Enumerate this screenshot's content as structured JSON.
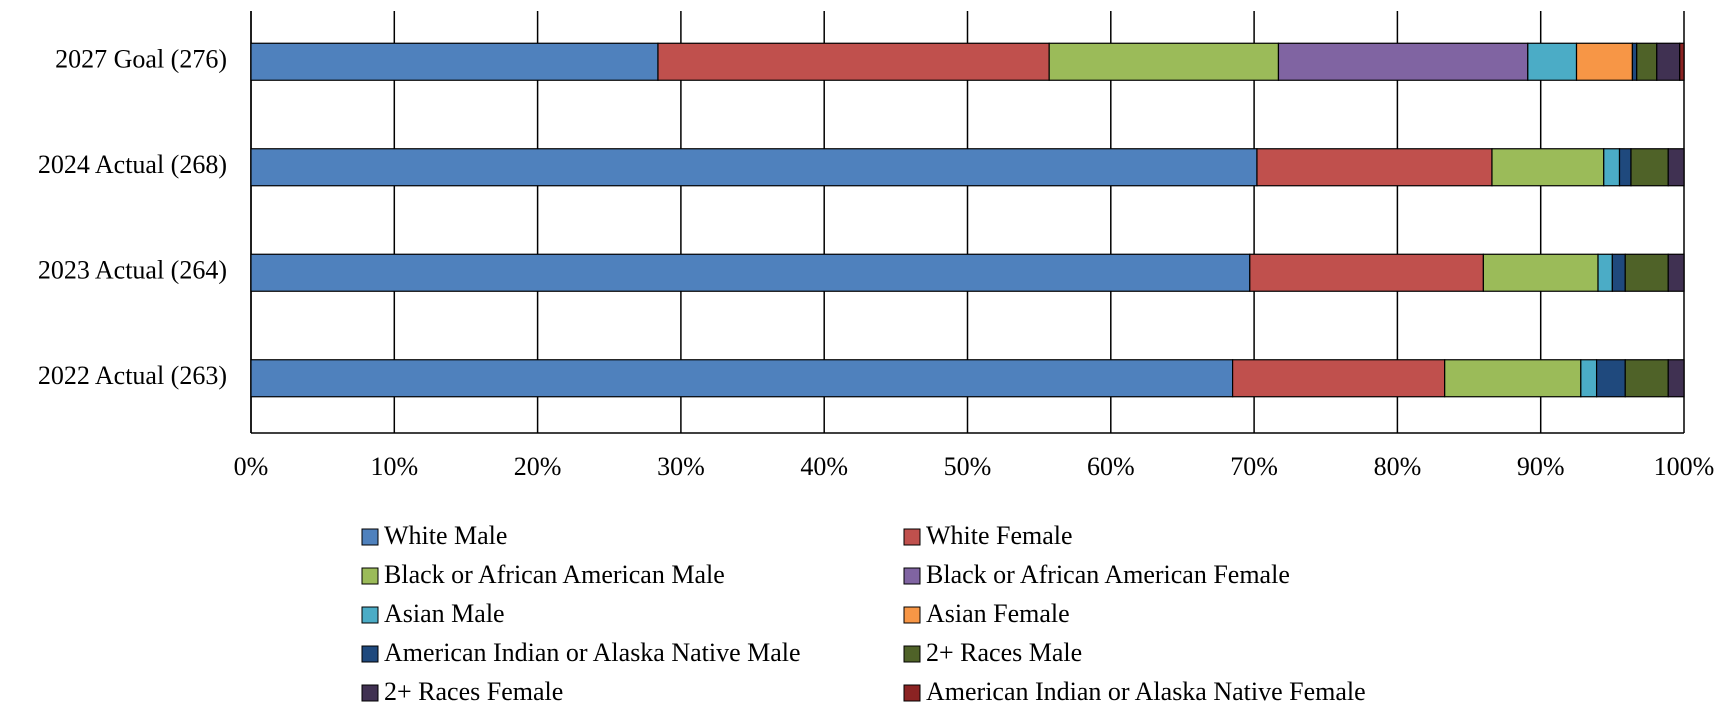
{
  "chart_data": {
    "type": "stacked_bar_horizontal",
    "categories": [
      "2027 Goal (276)",
      "2024 Actual (268)",
      "2023 Actual (264)",
      "2022 Actual (263)"
    ],
    "series": [
      {
        "name": "White Male",
        "color": "#4f81bd",
        "values": [
          28.4,
          70.2,
          69.7,
          68.5
        ]
      },
      {
        "name": "White Female",
        "color": "#c0504d",
        "values": [
          27.3,
          16.4,
          16.3,
          14.8
        ]
      },
      {
        "name": "Black or African American Male",
        "color": "#9bbb59",
        "values": [
          16.0,
          7.8,
          8.0,
          9.5
        ]
      },
      {
        "name": "Black or African American Female",
        "color": "#8064a2",
        "values": [
          17.4,
          0,
          0,
          0
        ]
      },
      {
        "name": "Asian Male",
        "color": "#4bacc6",
        "values": [
          3.4,
          1.1,
          1.0,
          1.1
        ]
      },
      {
        "name": "Asian Female",
        "color": "#f79646",
        "values": [
          3.9,
          0,
          0,
          0
        ]
      },
      {
        "name": "American Indian or Alaska Native Male",
        "color": "#1f497d",
        "values": [
          0.3,
          0.8,
          0.9,
          2.0
        ]
      },
      {
        "name": "2+ Races Male",
        "color": "#4f6228",
        "values": [
          1.4,
          2.6,
          3.0,
          3.0
        ]
      },
      {
        "name": "2+ Races Female",
        "color": "#403152",
        "values": [
          1.6,
          1.1,
          1.1,
          1.1
        ]
      },
      {
        "name": "American Indian or Alaska Native Female",
        "color": "#8b2323",
        "values": [
          0.3,
          0,
          0,
          0
        ]
      }
    ],
    "xlim": [
      0,
      100
    ],
    "xticks": [
      {
        "value": 0,
        "label": "0%"
      },
      {
        "value": 10,
        "label": "10%"
      },
      {
        "value": 20,
        "label": "20%"
      },
      {
        "value": 30,
        "label": "30%"
      },
      {
        "value": 40,
        "label": "40%"
      },
      {
        "value": 50,
        "label": "50%"
      },
      {
        "value": 60,
        "label": "60%"
      },
      {
        "value": 70,
        "label": "70%"
      },
      {
        "value": 80,
        "label": "80%"
      },
      {
        "value": 90,
        "label": "90%"
      },
      {
        "value": 100,
        "label": "100%"
      }
    ],
    "grid": true
  }
}
